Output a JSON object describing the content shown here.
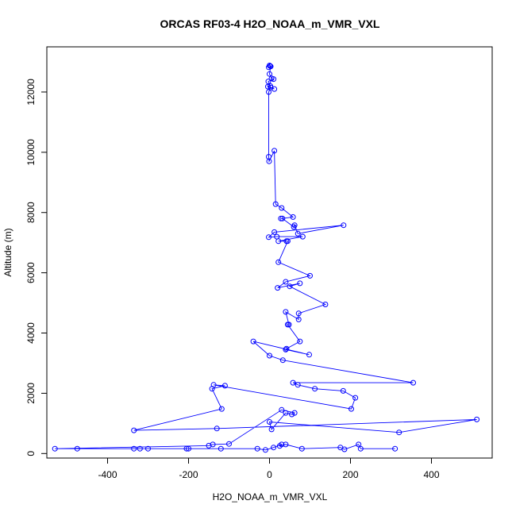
{
  "chart_data": {
    "type": "scatter",
    "title": "ORCAS RF03-4 H2O_NOAA_m_VMR_VXL",
    "xlabel": "H2O_NOAA_m_VMR_VXL",
    "ylabel": "Altitude (m)",
    "xlim": [
      -550,
      550
    ],
    "ylim": [
      -150,
      13500
    ],
    "xticks": [
      -400,
      -200,
      0,
      200,
      400
    ],
    "yticks": [
      0,
      2000,
      4000,
      6000,
      8000,
      10000,
      12000
    ],
    "grid": false,
    "legend": "none",
    "series": [
      {
        "color": "#0000ff",
        "connected": true,
        "marker": "open-circle",
        "points": [
          [
            0,
            12880
          ],
          [
            2,
            12860
          ],
          [
            -2,
            12820
          ],
          [
            3,
            12850
          ],
          [
            0,
            12600
          ],
          [
            5,
            12450
          ],
          [
            10,
            12430
          ],
          [
            -3,
            12350
          ],
          [
            2,
            12200
          ],
          [
            -4,
            12180
          ],
          [
            12,
            12100
          ],
          [
            3,
            12150
          ],
          [
            -2,
            12000
          ],
          [
            -2,
            9850
          ],
          [
            -1,
            9700
          ],
          [
            12,
            10050
          ],
          [
            15,
            8280
          ],
          [
            30,
            8150
          ],
          [
            58,
            7850
          ],
          [
            28,
            7800
          ],
          [
            32,
            7800
          ],
          [
            60,
            7520
          ],
          [
            62,
            7580
          ],
          [
            70,
            7300
          ],
          [
            183,
            7580
          ],
          [
            12,
            7350
          ],
          [
            -2,
            7180
          ],
          [
            18,
            7200
          ],
          [
            82,
            7200
          ],
          [
            22,
            7050
          ],
          [
            42,
            7050
          ],
          [
            45,
            7050
          ],
          [
            22,
            6350
          ],
          [
            100,
            5900
          ],
          [
            40,
            5700
          ],
          [
            20,
            5500
          ],
          [
            75,
            5650
          ],
          [
            50,
            5550
          ],
          [
            138,
            4950
          ],
          [
            72,
            4650
          ],
          [
            72,
            4450
          ],
          [
            40,
            4700
          ],
          [
            48,
            4280
          ],
          [
            45,
            4280
          ],
          [
            75,
            3720
          ],
          [
            42,
            3480
          ],
          [
            40,
            3450
          ],
          [
            98,
            3280
          ],
          [
            -40,
            3720
          ],
          [
            0,
            3250
          ],
          [
            33,
            3100
          ],
          [
            355,
            2350
          ],
          [
            58,
            2350
          ],
          [
            70,
            2280
          ],
          [
            112,
            2150
          ],
          [
            182,
            2080
          ],
          [
            212,
            1850
          ],
          [
            202,
            1480
          ],
          [
            -138,
            2280
          ],
          [
            -110,
            2250
          ],
          [
            -142,
            2150
          ],
          [
            -118,
            1480
          ],
          [
            -335,
            770
          ],
          [
            -130,
            830
          ],
          [
            512,
            1130
          ],
          [
            320,
            700
          ],
          [
            0,
            1050
          ],
          [
            5,
            800
          ],
          [
            40,
            1350
          ],
          [
            55,
            1300
          ],
          [
            62,
            1350
          ],
          [
            30,
            1450
          ],
          [
            -100,
            320
          ],
          [
            -140,
            300
          ],
          [
            -150,
            260
          ],
          [
            -530,
            160
          ],
          [
            -475,
            160
          ],
          [
            -335,
            160
          ],
          [
            -320,
            160
          ],
          [
            -300,
            160
          ],
          [
            -205,
            160
          ],
          [
            -200,
            160
          ],
          [
            -120,
            160
          ],
          [
            -30,
            160
          ],
          [
            -10,
            120
          ],
          [
            10,
            200
          ],
          [
            30,
            300
          ],
          [
            25,
            250
          ],
          [
            40,
            300
          ],
          [
            80,
            160
          ],
          [
            175,
            200
          ],
          [
            185,
            140
          ],
          [
            220,
            300
          ],
          [
            225,
            160
          ],
          [
            310,
            160
          ]
        ]
      }
    ]
  }
}
